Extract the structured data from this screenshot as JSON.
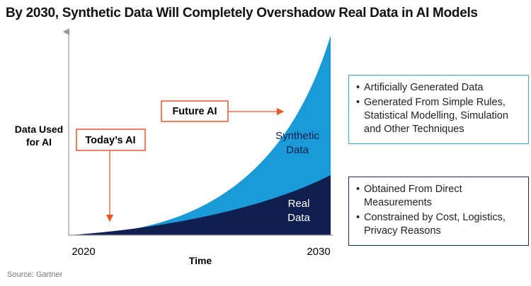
{
  "title": "By 2030,  Synthetic Data Will Completely Overshadow Real Data in AI Models",
  "y_label": [
    "Data Used",
    "for AI"
  ],
  "x_label": "Time",
  "x_labels": [
    "2020",
    "2030"
  ],
  "areas": [
    {
      "label": [
        "Synthetic",
        "Data"
      ]
    },
    {
      "label": [
        "Real",
        "Data"
      ]
    }
  ],
  "callouts": [
    "Today’s AI",
    "Future AI"
  ],
  "boxes": [
    {
      "items": [
        "Artificially Generated Data",
        "Generated From Simple Rules, Statistical Modelling, Simulation and Other Techniques"
      ]
    },
    {
      "items": [
        "Obtained From Direct Measurements",
        "Constrained by Cost, Logistics, Privacy Reasons"
      ]
    }
  ],
  "source": "Source: Gartner"
}
